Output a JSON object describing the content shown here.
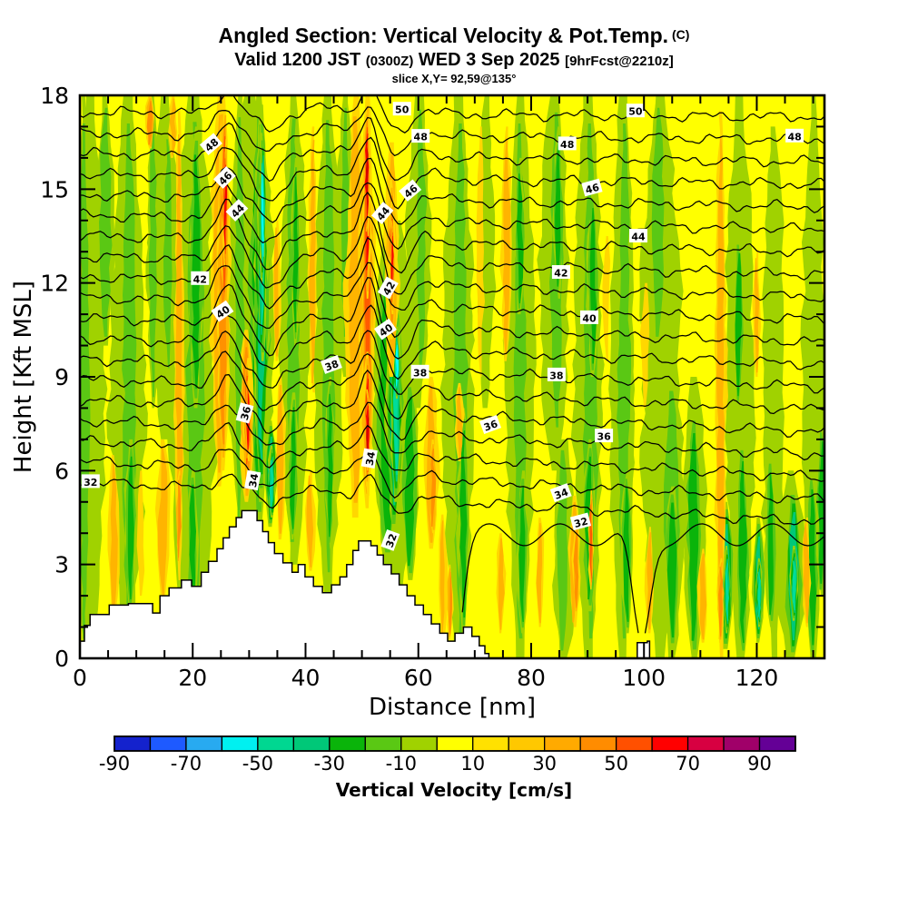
{
  "header": {
    "title": "Angled Section: Vertical Velocity & Pot.Temp.",
    "title_unit": "(C)",
    "valid_main": "Valid 1200 JST",
    "valid_z": "(0300Z)",
    "valid_date": "WED 3 Sep 2025",
    "fcst_tag": "[9hrFcst@2210z]",
    "slice": "slice X,Y= 92,59@135°"
  },
  "chart_data": {
    "type": "heatmap",
    "subtype": "filled-contour-vertical-cross-section",
    "title": "Angled Section: Vertical Velocity & Pot.Temp. (C)",
    "xlabel": "Distance [nm]",
    "ylabel": "Height [Kft MSL]",
    "x_axis": {
      "range": [
        0,
        132
      ],
      "major_ticks": [
        0,
        20,
        40,
        60,
        80,
        100,
        120
      ],
      "minor_step": 5
    },
    "y_axis": {
      "range": [
        0,
        18
      ],
      "major_ticks": [
        0,
        3,
        6,
        9,
        12,
        15,
        18
      ],
      "minor_step": 1
    },
    "colorbar": {
      "label": "Vertical Velocity [cm/s]",
      "value_range": [
        -90,
        100
      ],
      "tick_values": [
        -90,
        -70,
        -50,
        -30,
        -10,
        10,
        30,
        50,
        70,
        90
      ],
      "colors": [
        "#1422cd",
        "#1e5aff",
        "#28aaf0",
        "#00f0f0",
        "#00d791",
        "#00c878",
        "#0ab40a",
        "#5ac814",
        "#a0d200",
        "#ffff00",
        "#ffe100",
        "#ffc800",
        "#ffaa00",
        "#ff8c00",
        "#ff5000",
        "#ff0000",
        "#d70041",
        "#a00069",
        "#640096"
      ]
    },
    "palette": {
      "base": "#ffff00",
      "cool": [
        "#a0d200",
        "#5ac814",
        "#0ab40a",
        "#00c878",
        "#00dc9b",
        "#00ffff"
      ],
      "warm": [
        "#ffd700",
        "#ffb400",
        "#ff9100",
        "#ff5a00",
        "#f50500",
        "#cf0000"
      ]
    },
    "contours": {
      "unit": "C",
      "interval": 1,
      "values": [
        32,
        33,
        34,
        35,
        36,
        37,
        38,
        39,
        40,
        41,
        42,
        43,
        44,
        45,
        46,
        47,
        48,
        49,
        50
      ],
      "base_value": 32,
      "base_height_kft": 4.35,
      "height_per_unit": 0.72,
      "tilt_at_base": 1.3,
      "tilt_decay": 0.065,
      "wave_bumps": [
        [
          26,
          2.6,
          1.15
        ],
        [
          33.5,
          2.8,
          -0.85
        ],
        [
          51.3,
          2.2,
          1.5
        ],
        [
          56.5,
          2.8,
          -0.95
        ],
        [
          44,
          4,
          0.35
        ],
        [
          61,
          3,
          0.25
        ]
      ],
      "loop31": {
        "value": 31,
        "base": 3.95,
        "amp": 0.35,
        "xmin": 66.3,
        "dips": [
          [
            66.5,
            2.0,
            3.4
          ],
          [
            99.5,
            2.2,
            3.6
          ]
        ]
      },
      "labels": [
        [
          50,
          57.1,
          17.56,
          0
        ],
        [
          50,
          98.5,
          17.5,
          0
        ],
        [
          48,
          23.3,
          16.43,
          -40
        ],
        [
          48,
          60.4,
          16.69,
          0
        ],
        [
          48,
          86.4,
          16.45,
          0
        ],
        [
          48,
          126.7,
          16.7,
          0
        ],
        [
          46,
          25.7,
          15.36,
          -45
        ],
        [
          46,
          58.6,
          14.95,
          -40
        ],
        [
          46,
          90.8,
          15.04,
          -15
        ],
        [
          44,
          27.9,
          14.32,
          -45
        ],
        [
          44,
          53.7,
          14.23,
          -50
        ],
        [
          44,
          99,
          13.5,
          0
        ],
        [
          42,
          21.3,
          12.14,
          0
        ],
        [
          42,
          54.7,
          11.84,
          -60
        ],
        [
          42,
          85.3,
          12.34,
          0
        ],
        [
          40,
          25.3,
          11.09,
          -35
        ],
        [
          40,
          54.2,
          10.51,
          -35
        ],
        [
          40,
          90.3,
          10.89,
          0
        ],
        [
          38,
          44.6,
          9.38,
          -20
        ],
        [
          38,
          60.3,
          9.15,
          0
        ],
        [
          38,
          84.5,
          9.06,
          0
        ],
        [
          36,
          29.3,
          7.84,
          -75
        ],
        [
          36,
          72.8,
          7.46,
          -20
        ],
        [
          36,
          92.9,
          7.11,
          0
        ],
        [
          34,
          30.7,
          5.69,
          -80
        ],
        [
          34,
          51.4,
          6.39,
          -80
        ],
        [
          34,
          85.3,
          5.28,
          -20
        ],
        [
          32,
          1.9,
          5.65,
          0
        ],
        [
          32,
          55.1,
          3.77,
          -70
        ],
        [
          32,
          88.8,
          4.36,
          -15
        ]
      ]
    },
    "terrain_nm_kft": [
      [
        [
          0,
          0.55
        ],
        [
          0.8,
          1.05
        ],
        [
          1.8,
          1.4
        ],
        [
          5.2,
          1.7
        ],
        [
          8.6,
          1.75
        ],
        [
          12.9,
          1.45
        ],
        [
          14.2,
          2.0
        ],
        [
          15.8,
          2.25
        ],
        [
          18,
          2.5
        ],
        [
          19.8,
          2.3
        ],
        [
          21.5,
          2.75
        ],
        [
          22.8,
          3.1
        ],
        [
          24.3,
          3.5
        ],
        [
          25.4,
          3.85
        ],
        [
          26.5,
          4.2
        ],
        [
          27.7,
          4.5
        ],
        [
          28.7,
          4.72
        ],
        [
          31.4,
          4.4
        ],
        [
          32.4,
          4.05
        ],
        [
          33.4,
          3.7
        ],
        [
          34.5,
          3.35
        ],
        [
          36,
          3.05
        ],
        [
          37.6,
          2.75
        ],
        [
          38.7,
          3.0
        ],
        [
          39.9,
          2.6
        ],
        [
          41.4,
          2.3
        ],
        [
          43,
          2.1
        ],
        [
          44.6,
          2.35
        ],
        [
          46.1,
          2.6
        ],
        [
          47.3,
          3.0
        ],
        [
          48.4,
          3.45
        ],
        [
          49.4,
          3.75
        ],
        [
          51.6,
          3.6
        ],
        [
          52.7,
          3.3
        ],
        [
          53.8,
          3.0
        ],
        [
          55.2,
          2.7
        ],
        [
          56.6,
          2.35
        ],
        [
          58,
          2.0
        ],
        [
          59.4,
          1.7
        ],
        [
          60.9,
          1.4
        ],
        [
          62.3,
          1.1
        ],
        [
          63.8,
          0.8
        ],
        [
          65.2,
          0.55
        ],
        [
          66.5,
          0.8
        ],
        [
          68,
          1.0
        ],
        [
          69.5,
          0.7
        ],
        [
          70.8,
          0.4
        ],
        [
          71.8,
          0.15
        ],
        [
          72.5,
          0
        ]
      ],
      [
        [
          98.6,
          0
        ],
        [
          98.8,
          0.5
        ],
        [
          100.6,
          0.55
        ],
        [
          101,
          0
        ]
      ]
    ],
    "velocity_streaks": [
      [
        2,
        5,
        0,
        18,
        "c",
        1
      ],
      [
        8.5,
        6,
        0,
        18,
        "c",
        1
      ],
      [
        15,
        5,
        7,
        18,
        "c",
        1
      ],
      [
        20,
        8,
        0,
        18,
        "c",
        1
      ],
      [
        30,
        9,
        4,
        18,
        "c",
        1
      ],
      [
        38,
        5,
        3,
        18,
        "c",
        1
      ],
      [
        44,
        5,
        2,
        18,
        "c",
        1
      ],
      [
        56,
        7,
        2,
        14,
        "c",
        1
      ],
      [
        60,
        4,
        8,
        18,
        "c",
        1
      ],
      [
        67,
        5,
        0,
        18,
        "c",
        1
      ],
      [
        78,
        5,
        0,
        18,
        "c",
        1
      ],
      [
        84,
        5,
        6,
        18,
        "c",
        1
      ],
      [
        86,
        4,
        0,
        7,
        "c",
        1
      ],
      [
        90,
        5,
        0,
        18,
        "c",
        1
      ],
      [
        96,
        4,
        0,
        18,
        "c",
        1
      ],
      [
        103,
        7,
        0,
        18,
        "c",
        1
      ],
      [
        109,
        4,
        0,
        9,
        "c",
        1
      ],
      [
        117,
        5,
        0,
        18,
        "c",
        1
      ],
      [
        123,
        4,
        0,
        17,
        "c",
        1
      ],
      [
        126,
        5,
        0,
        6,
        "c",
        1
      ],
      [
        130,
        4,
        0,
        18,
        "c",
        1
      ],
      [
        47,
        3,
        9,
        18,
        "c",
        1
      ],
      [
        72,
        3,
        8,
        18,
        "c",
        1
      ],
      [
        0.8,
        2.5,
        0,
        18,
        "c",
        2
      ],
      [
        4.5,
        3,
        10,
        18,
        "c",
        2
      ],
      [
        8.7,
        3.4,
        0,
        18,
        "c",
        2
      ],
      [
        9,
        2,
        1.5,
        7,
        "c",
        3
      ],
      [
        13,
        2,
        8,
        18,
        "c",
        2
      ],
      [
        15.6,
        2,
        9,
        17,
        "c",
        2
      ],
      [
        20.5,
        4.5,
        1,
        18,
        "c",
        2
      ],
      [
        20.6,
        2.6,
        8,
        17,
        "c",
        3
      ],
      [
        20,
        2,
        1.5,
        6,
        "c",
        3
      ],
      [
        28.3,
        2.6,
        4,
        18,
        "c",
        2
      ],
      [
        31.8,
        4.5,
        4.2,
        18,
        "c",
        3
      ],
      [
        32.1,
        2.6,
        5,
        17.7,
        "c",
        4
      ],
      [
        32.3,
        1.6,
        9.5,
        17.5,
        "c",
        5
      ],
      [
        32.4,
        1,
        12,
        16.8,
        "c",
        6
      ],
      [
        33.8,
        2.2,
        4.2,
        7.6,
        "c",
        4
      ],
      [
        34,
        1.3,
        4.5,
        6.8,
        "c",
        5
      ],
      [
        37.8,
        3.4,
        3.2,
        18,
        "c",
        2
      ],
      [
        37.8,
        1.8,
        3.8,
        8.5,
        "c",
        3
      ],
      [
        38.2,
        1.5,
        10,
        16,
        "c",
        3
      ],
      [
        44,
        3.2,
        2.2,
        18,
        "c",
        2
      ],
      [
        44.3,
        1.7,
        3.5,
        9,
        "c",
        3
      ],
      [
        47,
        2.2,
        10,
        18,
        "c",
        2
      ],
      [
        54.5,
        5,
        3,
        14,
        "c",
        3
      ],
      [
        55.8,
        3.2,
        4,
        12.5,
        "c",
        4
      ],
      [
        56.1,
        1.9,
        5,
        11.2,
        "c",
        5
      ],
      [
        56.2,
        1.1,
        8.3,
        10.6,
        "c",
        6
      ],
      [
        58.5,
        3,
        2.5,
        9,
        "c",
        3
      ],
      [
        60.5,
        2.5,
        9,
        18,
        "c",
        2
      ],
      [
        67.5,
        3.6,
        0,
        18,
        "c",
        2
      ],
      [
        68,
        2,
        0.8,
        8,
        "c",
        3
      ],
      [
        78,
        3.2,
        0,
        18,
        "c",
        2
      ],
      [
        78,
        1.8,
        11,
        16,
        "c",
        3
      ],
      [
        78.5,
        2,
        0.8,
        6,
        "c",
        3
      ],
      [
        84.5,
        3.2,
        7,
        18,
        "c",
        2
      ],
      [
        84.8,
        1.8,
        11.5,
        17,
        "c",
        3
      ],
      [
        85.5,
        3,
        0,
        7,
        "c",
        2
      ],
      [
        90.5,
        3.6,
        0,
        18,
        "c",
        2
      ],
      [
        90.3,
        2.4,
        1.5,
        7,
        "c",
        3
      ],
      [
        91,
        2,
        9,
        15,
        "c",
        3
      ],
      [
        96.5,
        3.2,
        0,
        18,
        "c",
        2
      ],
      [
        97,
        2,
        0.8,
        6,
        "c",
        3
      ],
      [
        102.5,
        3,
        10,
        18,
        "c",
        2
      ],
      [
        105,
        4,
        0,
        9,
        "c",
        2
      ],
      [
        105,
        2.6,
        0.3,
        5.5,
        "c",
        3
      ],
      [
        108.8,
        3,
        0,
        8,
        "c",
        3
      ],
      [
        114.6,
        2.6,
        0.3,
        5,
        "c",
        4
      ],
      [
        114.7,
        1.3,
        0.8,
        3.6,
        "c",
        5
      ],
      [
        117.5,
        2.4,
        0,
        7,
        "c",
        3
      ],
      [
        116.8,
        2,
        8,
        13.5,
        "c",
        3
      ],
      [
        120.3,
        2.2,
        0.5,
        4.5,
        "c",
        4
      ],
      [
        120.4,
        1.1,
        1,
        3.2,
        "c",
        5
      ],
      [
        122.5,
        2,
        1,
        6.5,
        "c",
        3
      ],
      [
        126.5,
        3,
        0,
        5.5,
        "c",
        4
      ],
      [
        126.6,
        1.4,
        1.2,
        3.6,
        "c",
        5
      ],
      [
        129.8,
        2.4,
        0,
        6,
        "c",
        3
      ],
      [
        131.5,
        2,
        2,
        7.5,
        "c",
        3
      ],
      [
        6,
        1.8,
        1.2,
        6.5,
        "w",
        2
      ],
      [
        10.8,
        1.2,
        2,
        6,
        "w",
        1
      ],
      [
        12.4,
        1.6,
        16.3,
        18,
        "w",
        3
      ],
      [
        16.5,
        1.4,
        16,
        18,
        "w",
        2
      ],
      [
        14.8,
        2.2,
        1.8,
        7,
        "w",
        2
      ],
      [
        17.6,
        1.6,
        2.5,
        17.5,
        "w",
        2
      ],
      [
        17.6,
        1,
        3,
        6,
        "w",
        3
      ],
      [
        24.8,
        3.2,
        5.5,
        18,
        "w",
        2
      ],
      [
        25.4,
        2.2,
        6,
        18,
        "w",
        3
      ],
      [
        25.7,
        1.4,
        11,
        17.7,
        "w",
        4
      ],
      [
        25.8,
        0.9,
        12.5,
        16.6,
        "w",
        5
      ],
      [
        29.6,
        2.4,
        5,
        10.5,
        "w",
        3
      ],
      [
        29.7,
        1.5,
        5.8,
        9.6,
        "w",
        4
      ],
      [
        29.8,
        0.9,
        6.3,
        9,
        "w",
        5
      ],
      [
        35.6,
        1.8,
        3.8,
        9,
        "w",
        2
      ],
      [
        34.9,
        1.3,
        9.5,
        14,
        "w",
        2
      ],
      [
        40.8,
        1.6,
        2.8,
        6,
        "w",
        2
      ],
      [
        41.3,
        1.4,
        8.5,
        17,
        "w",
        2
      ],
      [
        48.9,
        3.6,
        4.5,
        18,
        "w",
        2
      ],
      [
        50.9,
        2.8,
        4.8,
        18,
        "w",
        3
      ],
      [
        51,
        1.9,
        5.2,
        18,
        "w",
        4
      ],
      [
        51,
        1.3,
        5.5,
        9.8,
        "w",
        5
      ],
      [
        51,
        0.8,
        6,
        8.6,
        "w",
        6
      ],
      [
        50.9,
        1.3,
        11.5,
        18,
        "w",
        5
      ],
      [
        50.9,
        0.85,
        13.5,
        17.6,
        "w",
        6
      ],
      [
        55.3,
        2.6,
        9,
        16.5,
        "w",
        2
      ],
      [
        55.2,
        1.8,
        10.2,
        15.3,
        "w",
        3
      ],
      [
        55.3,
        1.2,
        11,
        14.6,
        "w",
        4
      ],
      [
        55.3,
        0.7,
        11.5,
        14,
        "w",
        5
      ],
      [
        62.3,
        2.4,
        3.5,
        9,
        "w",
        2
      ],
      [
        62.6,
        1.4,
        4,
        7,
        "w",
        3
      ],
      [
        64.3,
        1.4,
        0.6,
        4.6,
        "w",
        2
      ],
      [
        65.6,
        1,
        0.6,
        3,
        "w",
        3
      ],
      [
        67.3,
        1.5,
        6.3,
        8.8,
        "w",
        2
      ],
      [
        71,
        1.2,
        9,
        17,
        "w",
        1
      ],
      [
        75.6,
        1.8,
        9.5,
        17,
        "w",
        2
      ],
      [
        74.6,
        1.5,
        0.8,
        4,
        "w",
        2
      ],
      [
        81.5,
        1.4,
        1,
        4.5,
        "w",
        2
      ],
      [
        87.6,
        1.9,
        1,
        5.2,
        "w",
        2
      ],
      [
        88,
        1.2,
        1.4,
        4.4,
        "w",
        3
      ],
      [
        90.6,
        0.8,
        2.2,
        5.4,
        "w",
        4
      ],
      [
        93.4,
        1.2,
        9.5,
        13.5,
        "w",
        1
      ],
      [
        100.3,
        1.4,
        8,
        12,
        "w",
        1
      ],
      [
        101,
        1.5,
        0.8,
        4.2,
        "w",
        2
      ],
      [
        110.4,
        1.6,
        0.5,
        3.5,
        "w",
        2
      ],
      [
        113.6,
        2,
        0,
        17.5,
        "w",
        2
      ],
      [
        113.6,
        1.2,
        0.5,
        3.2,
        "w",
        3
      ],
      [
        120,
        1.2,
        9,
        13,
        "w",
        2
      ],
      [
        128.8,
        1.4,
        1,
        4.5,
        "w",
        2
      ]
    ]
  }
}
